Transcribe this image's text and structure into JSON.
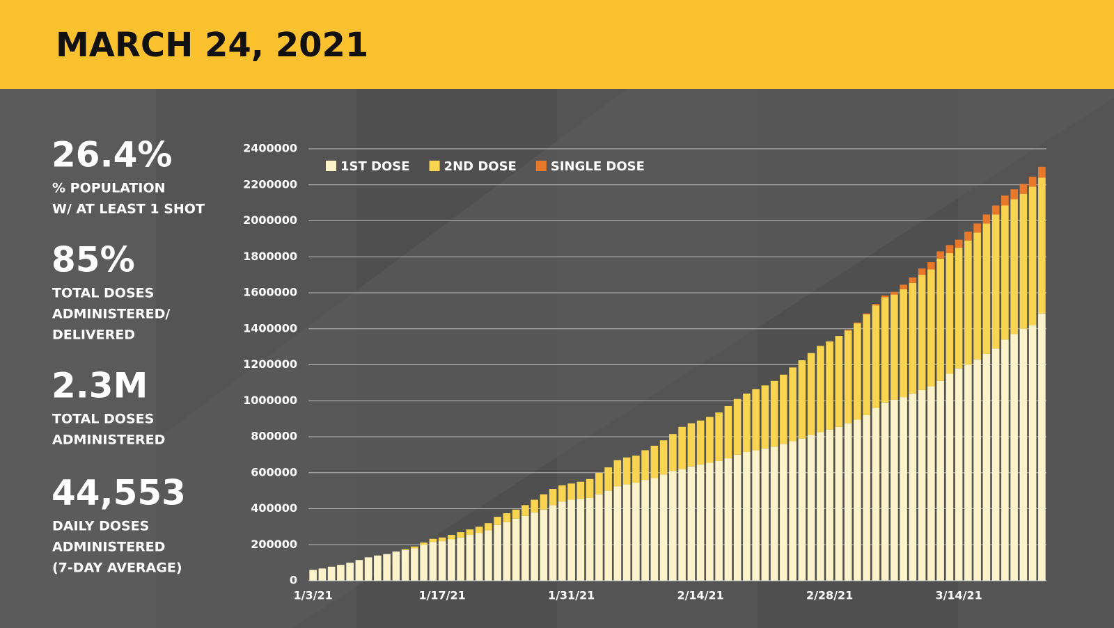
{
  "header": {
    "title": "MARCH 24, 2021"
  },
  "stats": [
    {
      "value": "26.4%",
      "label_lines": [
        "% POPULATION",
        "W/ AT LEAST 1 SHOT"
      ]
    },
    {
      "value": "85%",
      "label_lines": [
        "TOTAL DOSES",
        "ADMINISTERED/",
        "DELIVERED"
      ]
    },
    {
      "value": "2.3M",
      "label_lines": [
        "TOTAL DOSES",
        "ADMINISTERED"
      ]
    },
    {
      "value": "44,553",
      "label_lines": [
        "DAILY DOSES",
        "ADMINISTERED",
        "(7-DAY AVERAGE)"
      ]
    }
  ],
  "chart_data": {
    "type": "stacked_bar",
    "categories": [
      "1/3/21",
      null,
      null,
      null,
      null,
      null,
      null,
      null,
      null,
      null,
      null,
      null,
      null,
      null,
      "1/17/21",
      null,
      null,
      null,
      null,
      null,
      null,
      null,
      null,
      null,
      null,
      null,
      null,
      null,
      "1/31/21",
      null,
      null,
      null,
      null,
      null,
      null,
      null,
      null,
      null,
      null,
      null,
      null,
      null,
      "2/14/21",
      null,
      null,
      null,
      null,
      null,
      null,
      null,
      null,
      null,
      null,
      null,
      null,
      null,
      "2/28/21",
      null,
      null,
      null,
      null,
      null,
      null,
      null,
      null,
      null,
      null,
      null,
      null,
      null,
      "3/14/21",
      null,
      null,
      null,
      null,
      null,
      null,
      null,
      null,
      null
    ],
    "series": [
      {
        "name": "1ST DOSE",
        "color": "#fdf3cb",
        "values": [
          60000,
          68000,
          78000,
          88000,
          100000,
          115000,
          130000,
          140000,
          148000,
          162000,
          170000,
          180000,
          200000,
          215000,
          220000,
          230000,
          240000,
          255000,
          265000,
          280000,
          310000,
          325000,
          345000,
          360000,
          380000,
          395000,
          420000,
          440000,
          450000,
          455000,
          460000,
          480000,
          500000,
          525000,
          535000,
          545000,
          560000,
          570000,
          590000,
          610000,
          620000,
          635000,
          645000,
          655000,
          665000,
          680000,
          700000,
          715000,
          725000,
          735000,
          745000,
          760000,
          775000,
          790000,
          810000,
          825000,
          840000,
          855000,
          875000,
          895000,
          920000,
          960000,
          990000,
          1005000,
          1020000,
          1040000,
          1060000,
          1080000,
          1110000,
          1150000,
          1180000,
          1200000,
          1230000,
          1260000,
          1290000,
          1340000,
          1370000,
          1400000,
          1420000,
          1485000
        ]
      },
      {
        "name": "2ND DOSE",
        "color": "#f8d451",
        "values": [
          0,
          0,
          0,
          0,
          0,
          0,
          0,
          0,
          0,
          0,
          5000,
          10000,
          12000,
          18000,
          20000,
          25000,
          30000,
          30000,
          35000,
          40000,
          45000,
          50000,
          50000,
          60000,
          70000,
          85000,
          90000,
          90000,
          90000,
          95000,
          105000,
          120000,
          130000,
          145000,
          150000,
          150000,
          165000,
          180000,
          190000,
          205000,
          235000,
          240000,
          245000,
          255000,
          270000,
          290000,
          310000,
          325000,
          340000,
          350000,
          365000,
          385000,
          410000,
          435000,
          455000,
          480000,
          490000,
          505000,
          515000,
          535000,
          560000,
          570000,
          585000,
          585000,
          600000,
          615000,
          640000,
          650000,
          680000,
          670000,
          670000,
          690000,
          705000,
          725000,
          745000,
          745000,
          750000,
          750000,
          770000,
          755000
        ]
      },
      {
        "name": "SINGLE DOSE",
        "color": "#e8782a",
        "values": [
          0,
          0,
          0,
          0,
          0,
          0,
          0,
          0,
          0,
          0,
          0,
          0,
          0,
          0,
          0,
          0,
          0,
          0,
          0,
          0,
          0,
          0,
          0,
          0,
          0,
          0,
          0,
          0,
          0,
          0,
          0,
          0,
          0,
          0,
          0,
          0,
          0,
          0,
          0,
          0,
          0,
          0,
          0,
          0,
          0,
          0,
          0,
          0,
          0,
          0,
          0,
          0,
          0,
          0,
          0,
          0,
          0,
          0,
          5000,
          5000,
          5000,
          8000,
          10000,
          15000,
          25000,
          30000,
          35000,
          40000,
          40000,
          45000,
          45000,
          50000,
          50000,
          50000,
          50000,
          55000,
          55000,
          55000,
          55000,
          60000
        ]
      }
    ],
    "ylim": [
      0,
      2400000
    ],
    "yticks": [
      0,
      200000,
      400000,
      600000,
      800000,
      1000000,
      1200000,
      1400000,
      1600000,
      1800000,
      2000000,
      2200000,
      2400000
    ],
    "grid": true
  }
}
